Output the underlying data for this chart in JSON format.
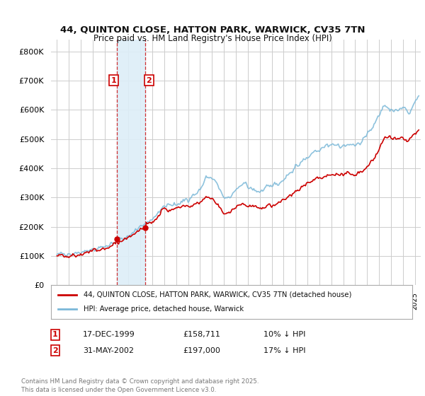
{
  "title": "44, QUINTON CLOSE, HATTON PARK, WARWICK, CV35 7TN",
  "subtitle": "Price paid vs. HM Land Registry's House Price Index (HPI)",
  "hpi_label": "HPI: Average price, detached house, Warwick",
  "property_label": "44, QUINTON CLOSE, HATTON PARK, WARWICK, CV35 7TN (detached house)",
  "hpi_color": "#7ab8d8",
  "property_color": "#cc0000",
  "annotation1_date": "17-DEC-1999",
  "annotation1_price": "£158,711",
  "annotation1_hpi": "10% ↓ HPI",
  "annotation2_date": "31-MAY-2002",
  "annotation2_price": "£197,000",
  "annotation2_hpi": "17% ↓ HPI",
  "shade_x1": 2000.0,
  "shade_x2": 2002.42,
  "ylim": [
    0,
    840000
  ],
  "xlim": [
    1994.5,
    2025.5
  ],
  "yticks": [
    0,
    100000,
    200000,
    300000,
    400000,
    500000,
    600000,
    700000,
    800000
  ],
  "footer": "Contains HM Land Registry data © Crown copyright and database right 2025.\nThis data is licensed under the Open Government Licence v3.0.",
  "background_color": "#ffffff",
  "grid_color": "#cccccc"
}
